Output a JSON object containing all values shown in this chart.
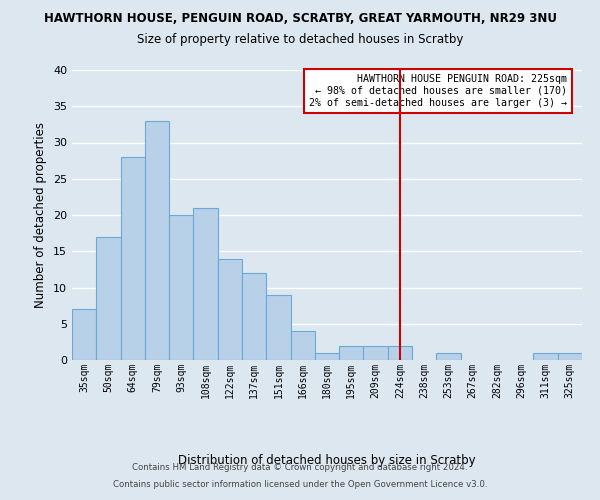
{
  "title": "HAWTHORN HOUSE, PENGUIN ROAD, SCRATBY, GREAT YARMOUTH, NR29 3NU",
  "subtitle": "Size of property relative to detached houses in Scratby",
  "xlabel": "Distribution of detached houses by size in Scratby",
  "ylabel": "Number of detached properties",
  "bar_labels": [
    "35sqm",
    "50sqm",
    "64sqm",
    "79sqm",
    "93sqm",
    "108sqm",
    "122sqm",
    "137sqm",
    "151sqm",
    "166sqm",
    "180sqm",
    "195sqm",
    "209sqm",
    "224sqm",
    "238sqm",
    "253sqm",
    "267sqm",
    "282sqm",
    "296sqm",
    "311sqm",
    "325sqm"
  ],
  "bar_heights": [
    7,
    17,
    28,
    33,
    20,
    21,
    14,
    12,
    9,
    4,
    1,
    2,
    2,
    2,
    0,
    1,
    0,
    0,
    0,
    1,
    1
  ],
  "bar_color": "#b8d0e8",
  "bar_edge_color": "#6aaad4",
  "ylim": [
    0,
    40
  ],
  "yticks": [
    0,
    5,
    10,
    15,
    20,
    25,
    30,
    35,
    40
  ],
  "vline_index": 13,
  "vline_color": "#cc0000",
  "annotation_title": "HAWTHORN HOUSE PENGUIN ROAD: 225sqm",
  "annotation_line1": "← 98% of detached houses are smaller (170)",
  "annotation_line2": "2% of semi-detached houses are larger (3) →",
  "annotation_box_color": "#ffffff",
  "annotation_box_edge_color": "#cc0000",
  "bg_color": "#dde7f0",
  "grid_color": "#ffffff",
  "footer1": "Contains HM Land Registry data © Crown copyright and database right 2024.",
  "footer2": "Contains public sector information licensed under the Open Government Licence v3.0."
}
